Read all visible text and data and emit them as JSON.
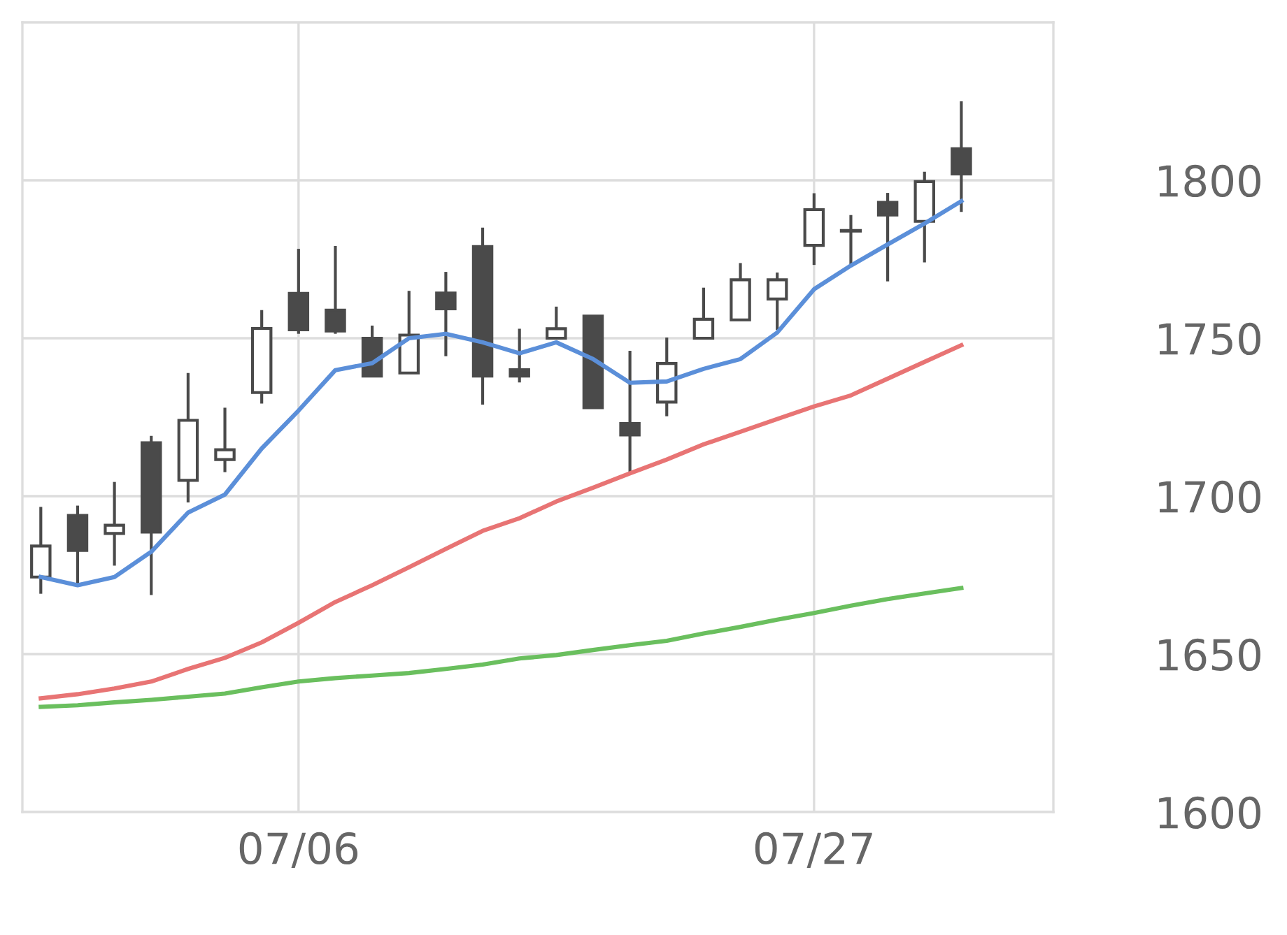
{
  "chart_data": {
    "type": "candlestick",
    "categories": [
      null,
      null,
      null,
      null,
      null,
      null,
      null,
      "07/06",
      null,
      null,
      null,
      null,
      null,
      null,
      null,
      null,
      null,
      null,
      null,
      null,
      null,
      "07/27",
      null,
      null,
      null,
      null
    ],
    "ohlc": [
      [
        1674.4,
        1696.6,
        1669.1,
        1684.2
      ],
      [
        1693.9,
        1697,
        1671.8,
        1682.8
      ],
      [
        1688.2,
        1704.5,
        1678,
        1690.8
      ],
      [
        1716.9,
        1719.1,
        1668.7,
        1688.6
      ],
      [
        1705,
        1739,
        1698,
        1724
      ],
      [
        1711.6,
        1728,
        1707.6,
        1714.7
      ],
      [
        1732.8,
        1758.9,
        1729.3,
        1753.1
      ],
      [
        1764.2,
        1778.3,
        1751.4,
        1752.7
      ],
      [
        1758.9,
        1779.2,
        1751.4,
        1752.3
      ],
      [
        1750,
        1754,
        1738,
        1738
      ],
      [
        1739,
        1765,
        1739,
        1751
      ],
      [
        1764.3,
        1771,
        1744.3,
        1759.3
      ],
      [
        1779,
        1785,
        1729,
        1738
      ],
      [
        1740,
        1753,
        1736,
        1738
      ],
      [
        1750,
        1760,
        1750,
        1753
      ],
      [
        1757,
        1757,
        1728,
        1728
      ],
      [
        1723,
        1746,
        1707.5,
        1719.4
      ],
      [
        1729.8,
        1750.2,
        1725.3,
        1742
      ],
      [
        1750,
        1766,
        1750,
        1756
      ],
      [
        1755.8,
        1773.8,
        1755.8,
        1768.5
      ],
      [
        1762.4,
        1770.8,
        1752.6,
        1768.5
      ],
      [
        1779.4,
        1795.9,
        1773.2,
        1790.7
      ],
      [
        1784,
        1789,
        1773,
        1784
      ],
      [
        1793,
        1796,
        1768,
        1789
      ],
      [
        1787,
        1802.7,
        1774,
        1799.6
      ],
      [
        1810,
        1825,
        1790,
        1802
      ]
    ],
    "series": [
      {
        "type": "line",
        "color": "#5b8fd9",
        "values": [
          1674.4,
          1671.8,
          1674.4,
          1682.4,
          1694.8,
          1700.5,
          1715.1,
          1727.1,
          1739.9,
          1742.1,
          1750,
          1751.4,
          1748.7,
          1745.2,
          1748.7,
          1743.4,
          1735.9,
          1736.3,
          1740.3,
          1743.4,
          1751.8,
          1765.5,
          1773,
          1779.7,
          1786.3,
          1793.4
        ]
      },
      {
        "type": "line",
        "color": "#e87474",
        "values": [
          1636,
          1637.3,
          1639.1,
          1641.3,
          1645.3,
          1648.8,
          1653.7,
          1659.9,
          1666.5,
          1671.8,
          1677.5,
          1683.3,
          1689,
          1693,
          1698.3,
          1702.7,
          1707.2,
          1711.6,
          1716.4,
          1720.4,
          1724.4,
          1728.4,
          1731.9,
          1737.2,
          1742.5,
          1747.8
        ]
      },
      {
        "type": "line",
        "color": "#6abf5e",
        "values": [
          1633.3,
          1633.8,
          1634.7,
          1635.5,
          1636.5,
          1637.5,
          1639.5,
          1641.3,
          1642.4,
          1643.2,
          1644,
          1645.3,
          1646.7,
          1648.6,
          1649.7,
          1651.3,
          1652.8,
          1654.2,
          1656.5,
          1658.6,
          1660.9,
          1663,
          1665.3,
          1667.4,
          1669.2,
          1670.9
        ]
      }
    ],
    "ylim": [
      1600,
      1850
    ],
    "yticks": [
      1600,
      1650,
      1700,
      1750,
      1800
    ],
    "grid": true
  }
}
